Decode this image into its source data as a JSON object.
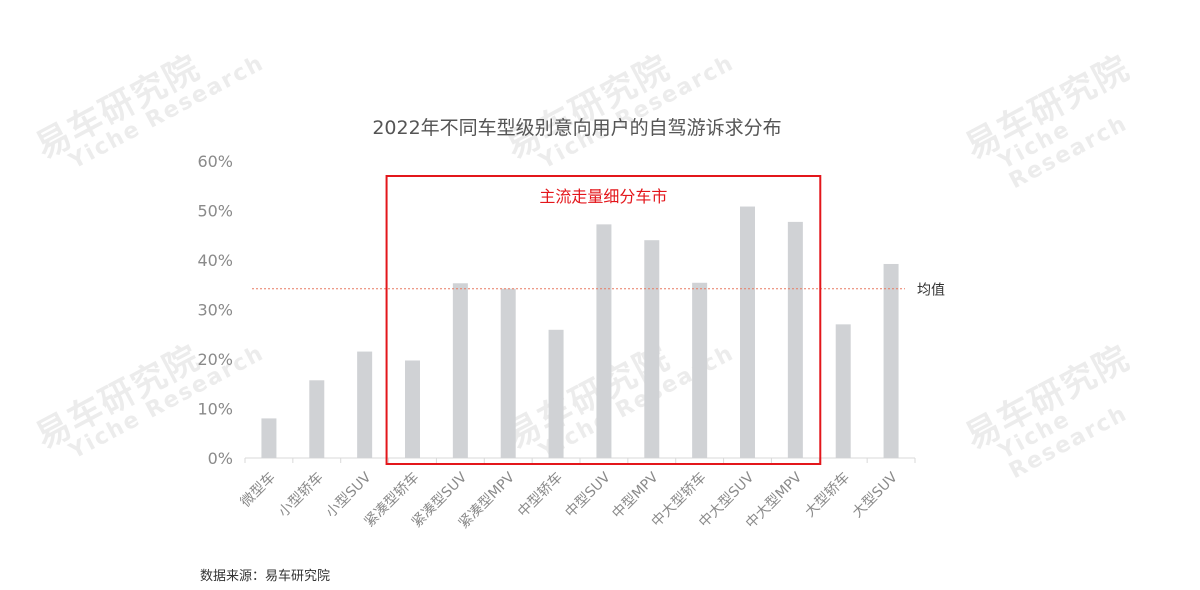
{
  "watermark": {
    "cn": "易车研究院",
    "en": "Yiche Research"
  },
  "source": "数据来源：易车研究院",
  "chart_data": {
    "type": "bar",
    "title": "2022年不同车型级别意向用户的自驾游诉求分布",
    "categories": [
      "微型车",
      "小型轿车",
      "小型SUV",
      "紧凑型轿车",
      "紧凑型SUV",
      "紧凑型MPV",
      "中型轿车",
      "中型SUV",
      "中型MPV",
      "中大型轿车",
      "中大型SUV",
      "中大型MPV",
      "大型轿车",
      "大型SUV"
    ],
    "values": [
      8,
      15.7,
      21.5,
      19.7,
      35.3,
      34.2,
      25.9,
      47.2,
      44,
      35.4,
      50.8,
      47.7,
      27,
      39.2
    ],
    "yticks": [
      "0%",
      "10%",
      "20%",
      "30%",
      "40%",
      "50%",
      "60%"
    ],
    "ylim": [
      0,
      60
    ],
    "unit": "%",
    "bar_color": "#d0d2d5",
    "reference_line": {
      "label": "均值",
      "value": 34.2,
      "color": "#e87a62"
    },
    "highlight": {
      "label": "主流走量细分车市",
      "start_category": "紧凑型轿车",
      "end_category": "中大型MPV",
      "color": "#e3161b"
    }
  }
}
